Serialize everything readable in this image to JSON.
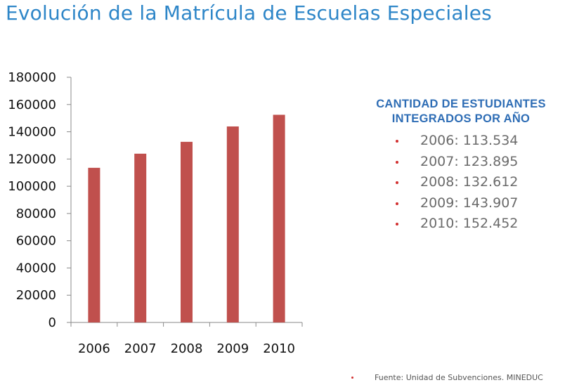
{
  "title": "Evolución de la Matrícula de Escuelas Especiales",
  "chart_data": {
    "type": "bar",
    "categories": [
      "2006",
      "2007",
      "2008",
      "2009",
      "2010"
    ],
    "values": [
      113534,
      123895,
      132612,
      143907,
      152452
    ],
    "ylim": [
      0,
      180000
    ],
    "yticks": [
      "0",
      "20000",
      "40000",
      "60000",
      "80000",
      "100000",
      "120000",
      "140000",
      "160000",
      "180000"
    ],
    "bar_color": "#c0504d",
    "grid": false,
    "legend": "none"
  },
  "info": {
    "heading_line1": "CANTIDAD DE ESTUDIANTES",
    "heading_line2": "INTEGRADOS POR AÑO",
    "items": [
      "2006: 113.534",
      "2007: 123.895",
      "2008: 132.612",
      "2009: 143.907",
      "2010: 152.452"
    ],
    "heading_color": "#2e6db5",
    "bullet_color": "#d23030"
  },
  "source": "Fuente: Unidad de Subvenciones. MINEDUC"
}
